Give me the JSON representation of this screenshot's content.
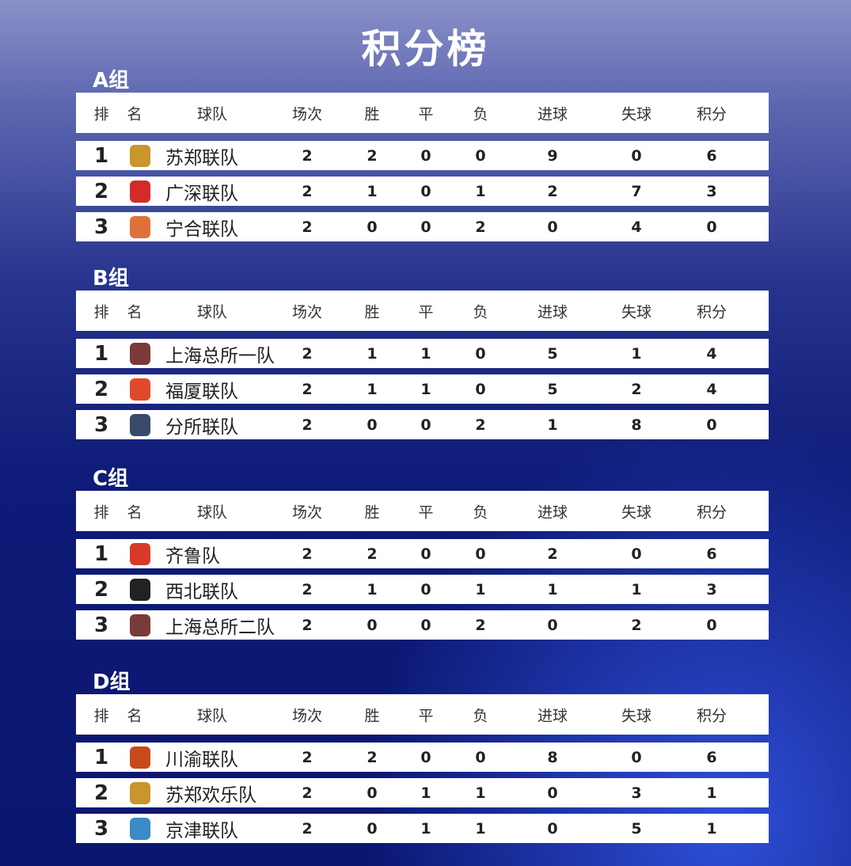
{
  "title": "积分榜",
  "headers": [
    "排",
    "名",
    "球队",
    "场次",
    "胜",
    "平",
    "负",
    "进球",
    "失球",
    "积分"
  ],
  "groups": [
    {
      "label": "A组",
      "rows": [
        {
          "rank": "1",
          "team": "苏郑联队",
          "logo_color": "#c8962a",
          "p": "2",
          "w": "2",
          "d": "0",
          "l": "0",
          "gf": "9",
          "ga": "0",
          "pts": "6"
        },
        {
          "rank": "2",
          "team": "广深联队",
          "logo_color": "#d42a2a",
          "p": "2",
          "w": "1",
          "d": "0",
          "l": "1",
          "gf": "2",
          "ga": "7",
          "pts": "3"
        },
        {
          "rank": "3",
          "team": "宁合联队",
          "logo_color": "#e0703a",
          "p": "2",
          "w": "0",
          "d": "0",
          "l": "2",
          "gf": "0",
          "ga": "4",
          "pts": "0"
        }
      ]
    },
    {
      "label": "B组",
      "rows": [
        {
          "rank": "1",
          "team": "上海总所一队",
          "logo_color": "#7a3a3a",
          "p": "2",
          "w": "1",
          "d": "1",
          "l": "0",
          "gf": "5",
          "ga": "1",
          "pts": "4"
        },
        {
          "rank": "2",
          "team": "福厦联队",
          "logo_color": "#e04a2a",
          "p": "2",
          "w": "1",
          "d": "1",
          "l": "0",
          "gf": "5",
          "ga": "2",
          "pts": "4"
        },
        {
          "rank": "3",
          "team": "分所联队",
          "logo_color": "#3a4a6a",
          "p": "2",
          "w": "0",
          "d": "0",
          "l": "2",
          "gf": "1",
          "ga": "8",
          "pts": "0"
        }
      ]
    },
    {
      "label": "C组",
      "rows": [
        {
          "rank": "1",
          "team": "齐鲁队",
          "logo_color": "#d83a2a",
          "p": "2",
          "w": "2",
          "d": "0",
          "l": "0",
          "gf": "2",
          "ga": "0",
          "pts": "6"
        },
        {
          "rank": "2",
          "team": "西北联队",
          "logo_color": "#222222",
          "p": "2",
          "w": "1",
          "d": "0",
          "l": "1",
          "gf": "1",
          "ga": "1",
          "pts": "3"
        },
        {
          "rank": "3",
          "team": "上海总所二队",
          "logo_color": "#7a3a3a",
          "p": "2",
          "w": "0",
          "d": "0",
          "l": "2",
          "gf": "0",
          "ga": "2",
          "pts": "0"
        }
      ]
    },
    {
      "label": "D组",
      "rows": [
        {
          "rank": "1",
          "team": "川渝联队",
          "logo_color": "#c84a1a",
          "p": "2",
          "w": "2",
          "d": "0",
          "l": "0",
          "gf": "8",
          "ga": "0",
          "pts": "6"
        },
        {
          "rank": "2",
          "team": "苏郑欢乐队",
          "logo_color": "#c8962a",
          "p": "2",
          "w": "0",
          "d": "1",
          "l": "1",
          "gf": "0",
          "ga": "3",
          "pts": "1"
        },
        {
          "rank": "3",
          "team": "京津联队",
          "logo_color": "#3a8ac8",
          "p": "2",
          "w": "0",
          "d": "1",
          "l": "1",
          "gf": "0",
          "ga": "5",
          "pts": "1"
        }
      ]
    }
  ]
}
